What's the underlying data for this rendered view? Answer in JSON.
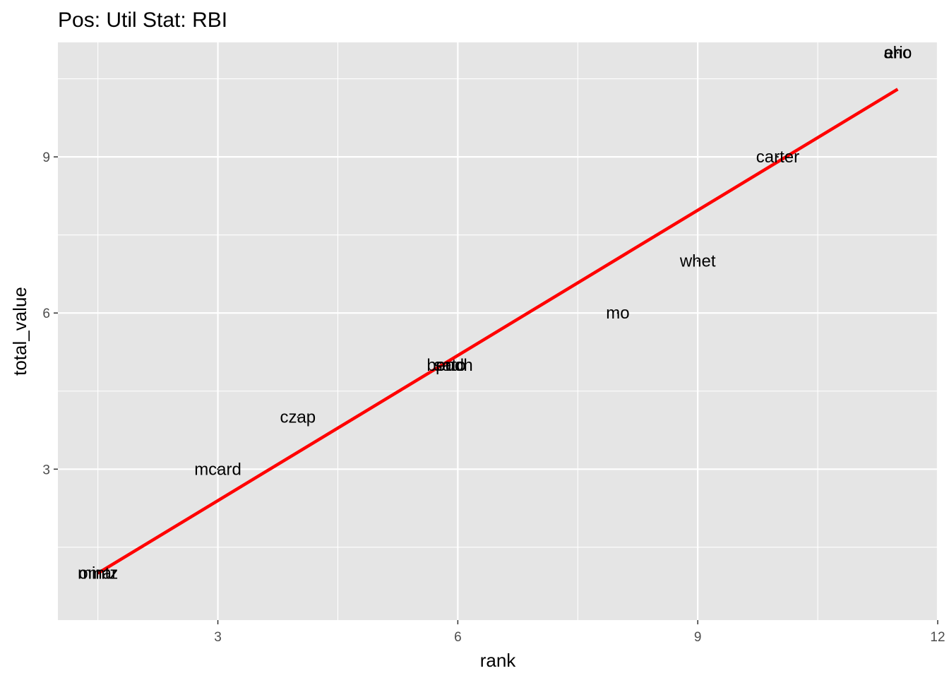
{
  "chart_data": {
    "type": "scatter",
    "title": "Pos: Util Stat: RBI",
    "xlabel": "rank",
    "ylabel": "total_value",
    "xlim": [
      1.0,
      12.0
    ],
    "ylim": [
      0.1,
      11.2
    ],
    "x_ticks": [
      3,
      6,
      9,
      12
    ],
    "y_ticks": [
      3,
      6,
      9
    ],
    "x_minor": [
      1.5,
      4.5,
      7.5,
      10.5
    ],
    "y_minor": [
      1.5,
      4.5,
      7.5,
      10.5
    ],
    "grid": true,
    "points": [
      {
        "label": "omar",
        "x": 1.5,
        "y": 1.0
      },
      {
        "label": "mintz",
        "x": 1.5,
        "y": 1.0
      },
      {
        "label": "mcard",
        "x": 3.0,
        "y": 3.0
      },
      {
        "label": "czap",
        "x": 4.0,
        "y": 4.0
      },
      {
        "label": "bench",
        "x": 5.9,
        "y": 5.0
      },
      {
        "label": "sato",
        "x": 5.9,
        "y": 5.0
      },
      {
        "label": "pud",
        "x": 5.9,
        "y": 5.0
      },
      {
        "label": "mo",
        "x": 8.0,
        "y": 6.0
      },
      {
        "label": "whet",
        "x": 9.0,
        "y": 7.0
      },
      {
        "label": "carter",
        "x": 10.0,
        "y": 9.0
      },
      {
        "label": "eric",
        "x": 11.5,
        "y": 11.0
      },
      {
        "label": "aho",
        "x": 11.5,
        "y": 11.0
      }
    ],
    "fit_line": {
      "x": [
        1.5,
        11.5
      ],
      "y": [
        1.0,
        10.3
      ],
      "color": "#ff0000"
    },
    "colors": {
      "panel_background": "#e5e5e5",
      "grid": "#ffffff",
      "text": "#000000",
      "tick_text": "#4d4d4d",
      "tick_mark": "#333333"
    }
  }
}
